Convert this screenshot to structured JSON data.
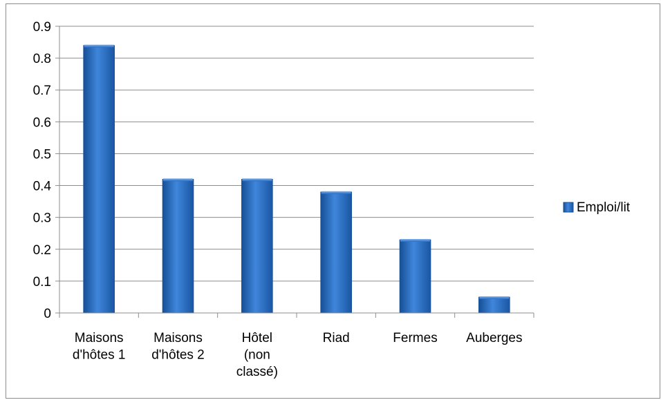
{
  "chart_data": {
    "type": "bar",
    "categories": [
      [
        "Maisons",
        "d'hôtes 1"
      ],
      [
        "Maisons",
        "d'hôtes 2"
      ],
      [
        "Hôtel",
        "(non",
        "classé)"
      ],
      [
        "Riad"
      ],
      [
        "Fermes"
      ],
      [
        "Auberges"
      ]
    ],
    "series": [
      {
        "name": "Emploi/lit",
        "values": [
          0.84,
          0.42,
          0.42,
          0.38,
          0.23,
          0.05
        ]
      }
    ],
    "ylim": [
      0,
      0.9
    ],
    "yticks": [
      "0",
      "0.1",
      "0.2",
      "0.3",
      "0.4",
      "0.5",
      "0.6",
      "0.7",
      "0.8",
      "0.9"
    ],
    "grid": true,
    "legend_position": "right",
    "colors": {
      "bar": "#2a6cc4",
      "bar_light": "#4b8fe0",
      "bar_dark": "#164f96",
      "grid": "#8c8c8c"
    }
  }
}
